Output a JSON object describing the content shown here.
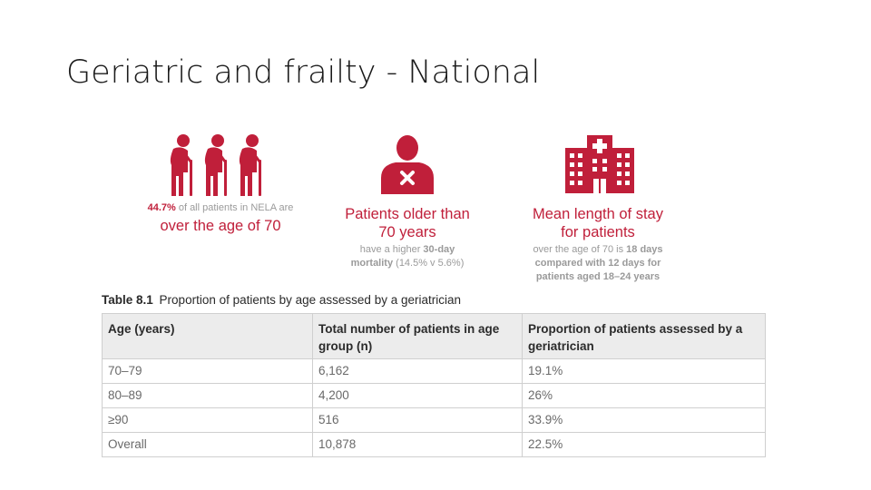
{
  "slide": {
    "title": "Geriatric and frailty - National"
  },
  "infographic": {
    "accent_color": "#c01f3a",
    "icons": [
      "elderly-people-icon",
      "patient-icon",
      "hospital-icon"
    ],
    "stat1": {
      "pct": "44.7%",
      "text": " of all patients in NELA are",
      "headline": "over the age of 70"
    },
    "stat2": {
      "headline_line1": "Patients older than",
      "headline_line2": "70 years",
      "sub_prefix": "have a higher ",
      "sub_bold": "30-day",
      "sub_line2_bold": "mortality",
      "sub_line2_rest": " (14.5% v 5.6%)"
    },
    "stat3": {
      "headline_line1": "Mean length of stay",
      "headline_line2": "for patients",
      "sub_line1_prefix": "over the age of 70 is ",
      "sub_line1_bold": "18 days",
      "sub_line2": "compared with 12 days for",
      "sub_line3": "patients aged 18–24 years"
    }
  },
  "table": {
    "caption_num": "Table 8.1",
    "caption_text": "Proportion of patients by age assessed by a geriatrician",
    "headers": [
      "Age (years)",
      "Total number of patients in age group (n)",
      "Proportion of patients assessed by a geriatrician"
    ],
    "rows": [
      [
        "70–79",
        "6,162",
        "19.1%"
      ],
      [
        "80–89",
        "4,200",
        "26%"
      ],
      [
        "≥90",
        "516",
        "33.9%"
      ],
      [
        "Overall",
        "10,878",
        "22.5%"
      ]
    ]
  }
}
